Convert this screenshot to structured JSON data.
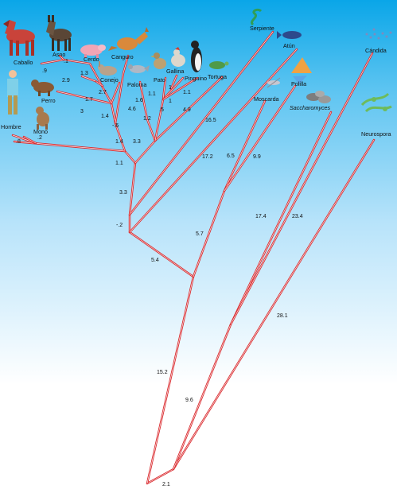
{
  "species": {
    "caballo": "Caballo",
    "asno": "Asno",
    "cerdo": "Cerdo",
    "canguro": "Canguro",
    "conejo": "Conejo",
    "paloma": "Paloma",
    "pato": "Pato",
    "gallina": "Gallina",
    "pinguino": "Pinguino",
    "tortuga": "Tortuga",
    "serpiente": "Serpiente",
    "atun": "Atún",
    "moscarda": "Moscarda",
    "polilla": "Polilla",
    "saccharomyces": "Saccharomyces",
    "candida": "Cándida",
    "neurospora": "Neurospora",
    "perro": "Perro",
    "hombre": "Hombre",
    "mono": "Mono"
  },
  "branch_values": {
    "caballo": ".9",
    "asno": ".1",
    "cab_asno": "2.9",
    "cerdo": "1.3",
    "conejo": "2.7",
    "perro": "1.7",
    "perro_b": "3",
    "mammal_a": "1.4",
    "mammal_b": "-.6",
    "canguro": "4.6",
    "paloma": "1.6",
    "pato": "1.1",
    "gallina": "1",
    "pinguino": "1.1",
    "bird_inner": ".5",
    "birds": "1.2",
    "tortuga": "4.9",
    "hombre": ".8",
    "mono": ".2",
    "primate": "1.4",
    "amniote_a": "3.3",
    "amniote_b": "1.1",
    "serpiente": "16.5",
    "atun": "17.2",
    "vert": "3.3",
    "vert_root": "-.2",
    "moscarda": "6.5",
    "polilla": "9.9",
    "insect": "5.7",
    "animal": "5.4",
    "sacch": "17.4",
    "candida": "23.4",
    "neuro": "28.1",
    "opist": "15.2",
    "fungi": "9.6",
    "root": "2.1"
  }
}
